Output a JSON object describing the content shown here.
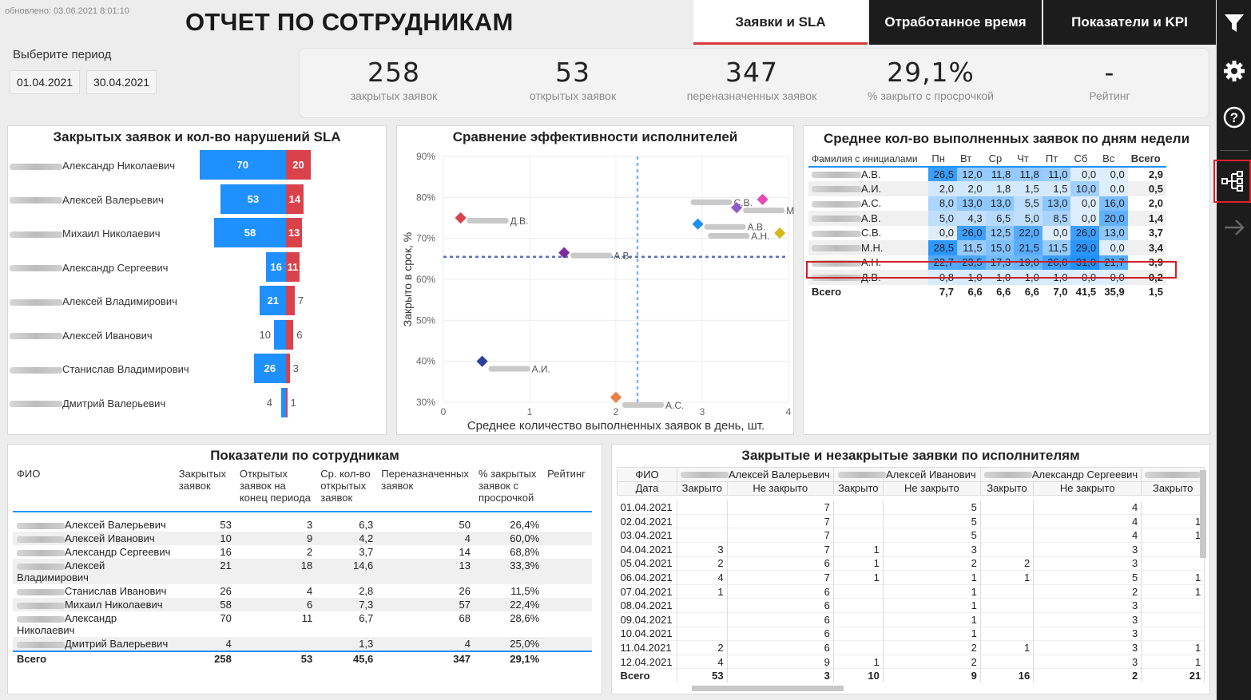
{
  "header": {
    "updated": "обновлено: 03.06.2021 8:01:10",
    "title": "ОТЧЕТ ПО СОТРУДНИКАМ",
    "period_label": "Выберите период",
    "date_from": "01.04.2021",
    "date_to": "30.04.2021"
  },
  "tabs": [
    "Заявки и SLA",
    "Отработанное время",
    "Показатели и KPI"
  ],
  "kpis": [
    {
      "value": "258",
      "label": "закрытых заявок"
    },
    {
      "value": "53",
      "label": "открытых заявок"
    },
    {
      "value": "347",
      "label": "переназначенных заявок"
    },
    {
      "value": "29,1%",
      "label": "% закрыто с просрочкой"
    },
    {
      "value": "-",
      "label": "Рейтинг"
    }
  ],
  "sidebar": {
    "icons": [
      "filter-icon",
      "gear-icon",
      "help-icon",
      "hierarchy-icon",
      "arrow-right-icon"
    ]
  },
  "sla_chart": {
    "title": "Закрытых заявок и кол-во нарушений SLA",
    "rows": [
      {
        "name": "Александр  Николаевич",
        "closed": 70,
        "violations": 20
      },
      {
        "name": "Алексей Валерьевич",
        "closed": 53,
        "violations": 14
      },
      {
        "name": "Михаил Николаевич",
        "closed": 58,
        "violations": 13
      },
      {
        "name": "Александр Сергеевич",
        "closed": 16,
        "violations": 11
      },
      {
        "name": "Алексей Владимирович",
        "closed": 21,
        "violations": 7
      },
      {
        "name": "Алексей Иванович",
        "closed": 10,
        "violations": 6
      },
      {
        "name": "Станислав Владимирович",
        "closed": 26,
        "violations": 3
      },
      {
        "name": "Дмитрий Валерьевич",
        "closed": 4,
        "violations": 1
      }
    ]
  },
  "chart_data": {
    "type": "scatter",
    "title": "Сравнение эффективности исполнителей",
    "xlabel": "Среднее количество выполненных заявок в день, шт.",
    "ylabel": "Закрыто в срок, %",
    "xlim": [
      0,
      4
    ],
    "ylim": [
      30,
      90
    ],
    "xticks": [
      "0",
      "1",
      "2",
      "3",
      "4"
    ],
    "yticks": [
      "30%",
      "40%",
      "50%",
      "60%",
      "70%",
      "80%",
      "90%"
    ],
    "ref_x": 2.25,
    "ref_y": 65.5,
    "points": [
      {
        "label": "С.В.",
        "x": 3.7,
        "y": 79.5,
        "color": "#e649b0"
      },
      {
        "label": "Д.В.",
        "x": 0.2,
        "y": 75.0,
        "color": "#d9424a"
      },
      {
        "label": "М.Н.",
        "x": 3.4,
        "y": 77.5,
        "color": "#8e5cc9"
      },
      {
        "label": "А.В.",
        "x": 2.95,
        "y": 73.5,
        "color": "#1e90ff"
      },
      {
        "label": "А.Н.",
        "x": 3.9,
        "y": 71.3,
        "color": "#d4b81c"
      },
      {
        "label": "А.В.",
        "x": 1.4,
        "y": 66.5,
        "color": "#7b2d9e"
      },
      {
        "label": "А.И.",
        "x": 0.45,
        "y": 40.0,
        "color": "#2b3f9e"
      },
      {
        "label": "А.С.",
        "x": 2.0,
        "y": 31.2,
        "color": "#e8804a"
      }
    ]
  },
  "weekday_table": {
    "title": "Среднее кол-во выполненных заявок по дням недели",
    "headers": [
      "Фамилия с инициалами",
      "Пн",
      "Вт",
      "Ср",
      "Чт",
      "Пт",
      "Сб",
      "Вс",
      "Всего"
    ],
    "rows": [
      [
        "А.В.",
        "26,5",
        "12,0",
        "11,8",
        "11,8",
        "11,0",
        "0,0",
        "0,0",
        "2,9"
      ],
      [
        "А.И.",
        "2,0",
        "2,0",
        "1,8",
        "1,5",
        "1,5",
        "10,0",
        "0,0",
        "0,5"
      ],
      [
        "А.С.",
        "8,0",
        "13,0",
        "13,0",
        "5,5",
        "13,0",
        "0,0",
        "16,0",
        "2,0"
      ],
      [
        "А.В.",
        "5,0",
        "4,3",
        "6,5",
        "5,0",
        "8,5",
        "0,0",
        "20,0",
        "1,4"
      ],
      [
        "С.В.",
        "0,0",
        "26,0",
        "12,5",
        "22,0",
        "0,0",
        "26,0",
        "13,0",
        "3,7"
      ],
      [
        "М.Н.",
        "28,5",
        "11,5",
        "15,0",
        "21,5",
        "11,5",
        "29,0",
        "0,0",
        "3,4"
      ],
      [
        "А.Н.",
        "22,7",
        "23,5",
        "17,3",
        "19,0",
        "26,0",
        "31,0",
        "21,7",
        "3,9"
      ],
      [
        "Д.В.",
        "0,8",
        "1,0",
        "1,0",
        "1,0",
        "1,0",
        "0,0",
        "0,0",
        "0,2"
      ]
    ],
    "total": [
      "Всего",
      "7,7",
      "6,6",
      "6,6",
      "6,6",
      "7,0",
      "41,5",
      "35,9",
      "1,5"
    ]
  },
  "employees_table": {
    "title": "Показатели по сотрудникам",
    "headers": [
      "ФИО",
      "Закрытых заявок",
      "Открытых заявок на конец периода",
      "Ср. кол-во открытых заявок",
      "Переназначенных заявок",
      "% закрытых заявок с просрочкой",
      "Рейтинг"
    ],
    "rows": [
      [
        "Алексей Валерьевич",
        "53",
        "3",
        "6,3",
        "50",
        "26,4%",
        ""
      ],
      [
        "Алексей Иванович",
        "10",
        "9",
        "4,2",
        "4",
        "60,0%",
        ""
      ],
      [
        "Александр Сергеевич",
        "16",
        "2",
        "3,7",
        "14",
        "68,8%",
        ""
      ],
      [
        "Алексей Владимирович",
        "21",
        "18",
        "14,6",
        "13",
        "33,3%",
        ""
      ],
      [
        "Станислав Иванович",
        "26",
        "4",
        "2,8",
        "26",
        "11,5%",
        ""
      ],
      [
        "Михаил Николаевич",
        "58",
        "6",
        "7,3",
        "57",
        "22,4%",
        ""
      ],
      [
        "Александр Николаевич",
        "70",
        "11",
        "6,7",
        "68",
        "28,6%",
        ""
      ],
      [
        "Дмитрий Валерьевич",
        "4",
        "",
        "1,3",
        "4",
        "25,0%",
        ""
      ]
    ],
    "total": [
      "Всего",
      "258",
      "53",
      "45,6",
      "347",
      "29,1%",
      ""
    ]
  },
  "matrix_table": {
    "title": "Закрытые и незакрытые заявки по исполнителям",
    "row_header_top": "ФИО",
    "row_header": "Дата",
    "groups": [
      "Алексей Валерьевич",
      "Алексей Иванович",
      "Александр Сергеевич",
      ""
    ],
    "sub": [
      "Закрыто",
      "Не закрыто"
    ],
    "rows": [
      [
        "01.04.2021",
        "",
        "7",
        "",
        "5",
        "",
        "4",
        ""
      ],
      [
        "02.04.2021",
        "",
        "7",
        "",
        "5",
        "",
        "4",
        "1"
      ],
      [
        "03.04.2021",
        "",
        "7",
        "",
        "5",
        "",
        "4",
        "1"
      ],
      [
        "04.04.2021",
        "3",
        "7",
        "1",
        "3",
        "",
        "3",
        ""
      ],
      [
        "05.04.2021",
        "2",
        "6",
        "1",
        "2",
        "2",
        "3",
        ""
      ],
      [
        "06.04.2021",
        "4",
        "7",
        "1",
        "1",
        "1",
        "5",
        "1"
      ],
      [
        "07.04.2021",
        "1",
        "6",
        "",
        "1",
        "",
        "2",
        "1"
      ],
      [
        "08.04.2021",
        "",
        "6",
        "",
        "1",
        "",
        "3",
        ""
      ],
      [
        "09.04.2021",
        "",
        "6",
        "",
        "1",
        "",
        "3",
        ""
      ],
      [
        "10.04.2021",
        "",
        "6",
        "",
        "1",
        "",
        "3",
        ""
      ],
      [
        "11.04.2021",
        "2",
        "6",
        "",
        "2",
        "1",
        "3",
        "1"
      ],
      [
        "12.04.2021",
        "4",
        "9",
        "1",
        "2",
        "",
        "3",
        "1"
      ]
    ],
    "total": [
      "Всего",
      "53",
      "3",
      "10",
      "9",
      "16",
      "2",
      "21"
    ]
  }
}
